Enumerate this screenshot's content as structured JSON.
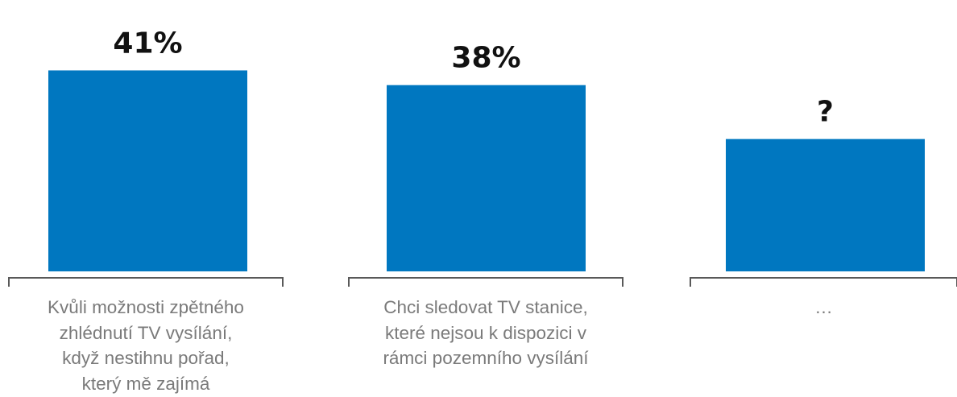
{
  "chart_data": {
    "type": "bar",
    "categories": [
      "Kvůli možnosti zpětného\nzhlédnutí TV vysílání,\nkdyž nestihnu pořad,\nkterý mě zajímá",
      "Chci sledovat TV stanice,\nkteré nejsou k dispozici v\nrámci pozemního vysílání",
      "…"
    ],
    "values": [
      41,
      38,
      27
    ],
    "value_labels": [
      "41%",
      "38%",
      "?"
    ],
    "ylim": [
      0,
      46
    ],
    "grid": false,
    "legend": "none",
    "colors": {
      "bar": "#0077c0",
      "bracket": "#595959",
      "value_label": "#111111",
      "category_label": "#7a7a7a"
    }
  }
}
